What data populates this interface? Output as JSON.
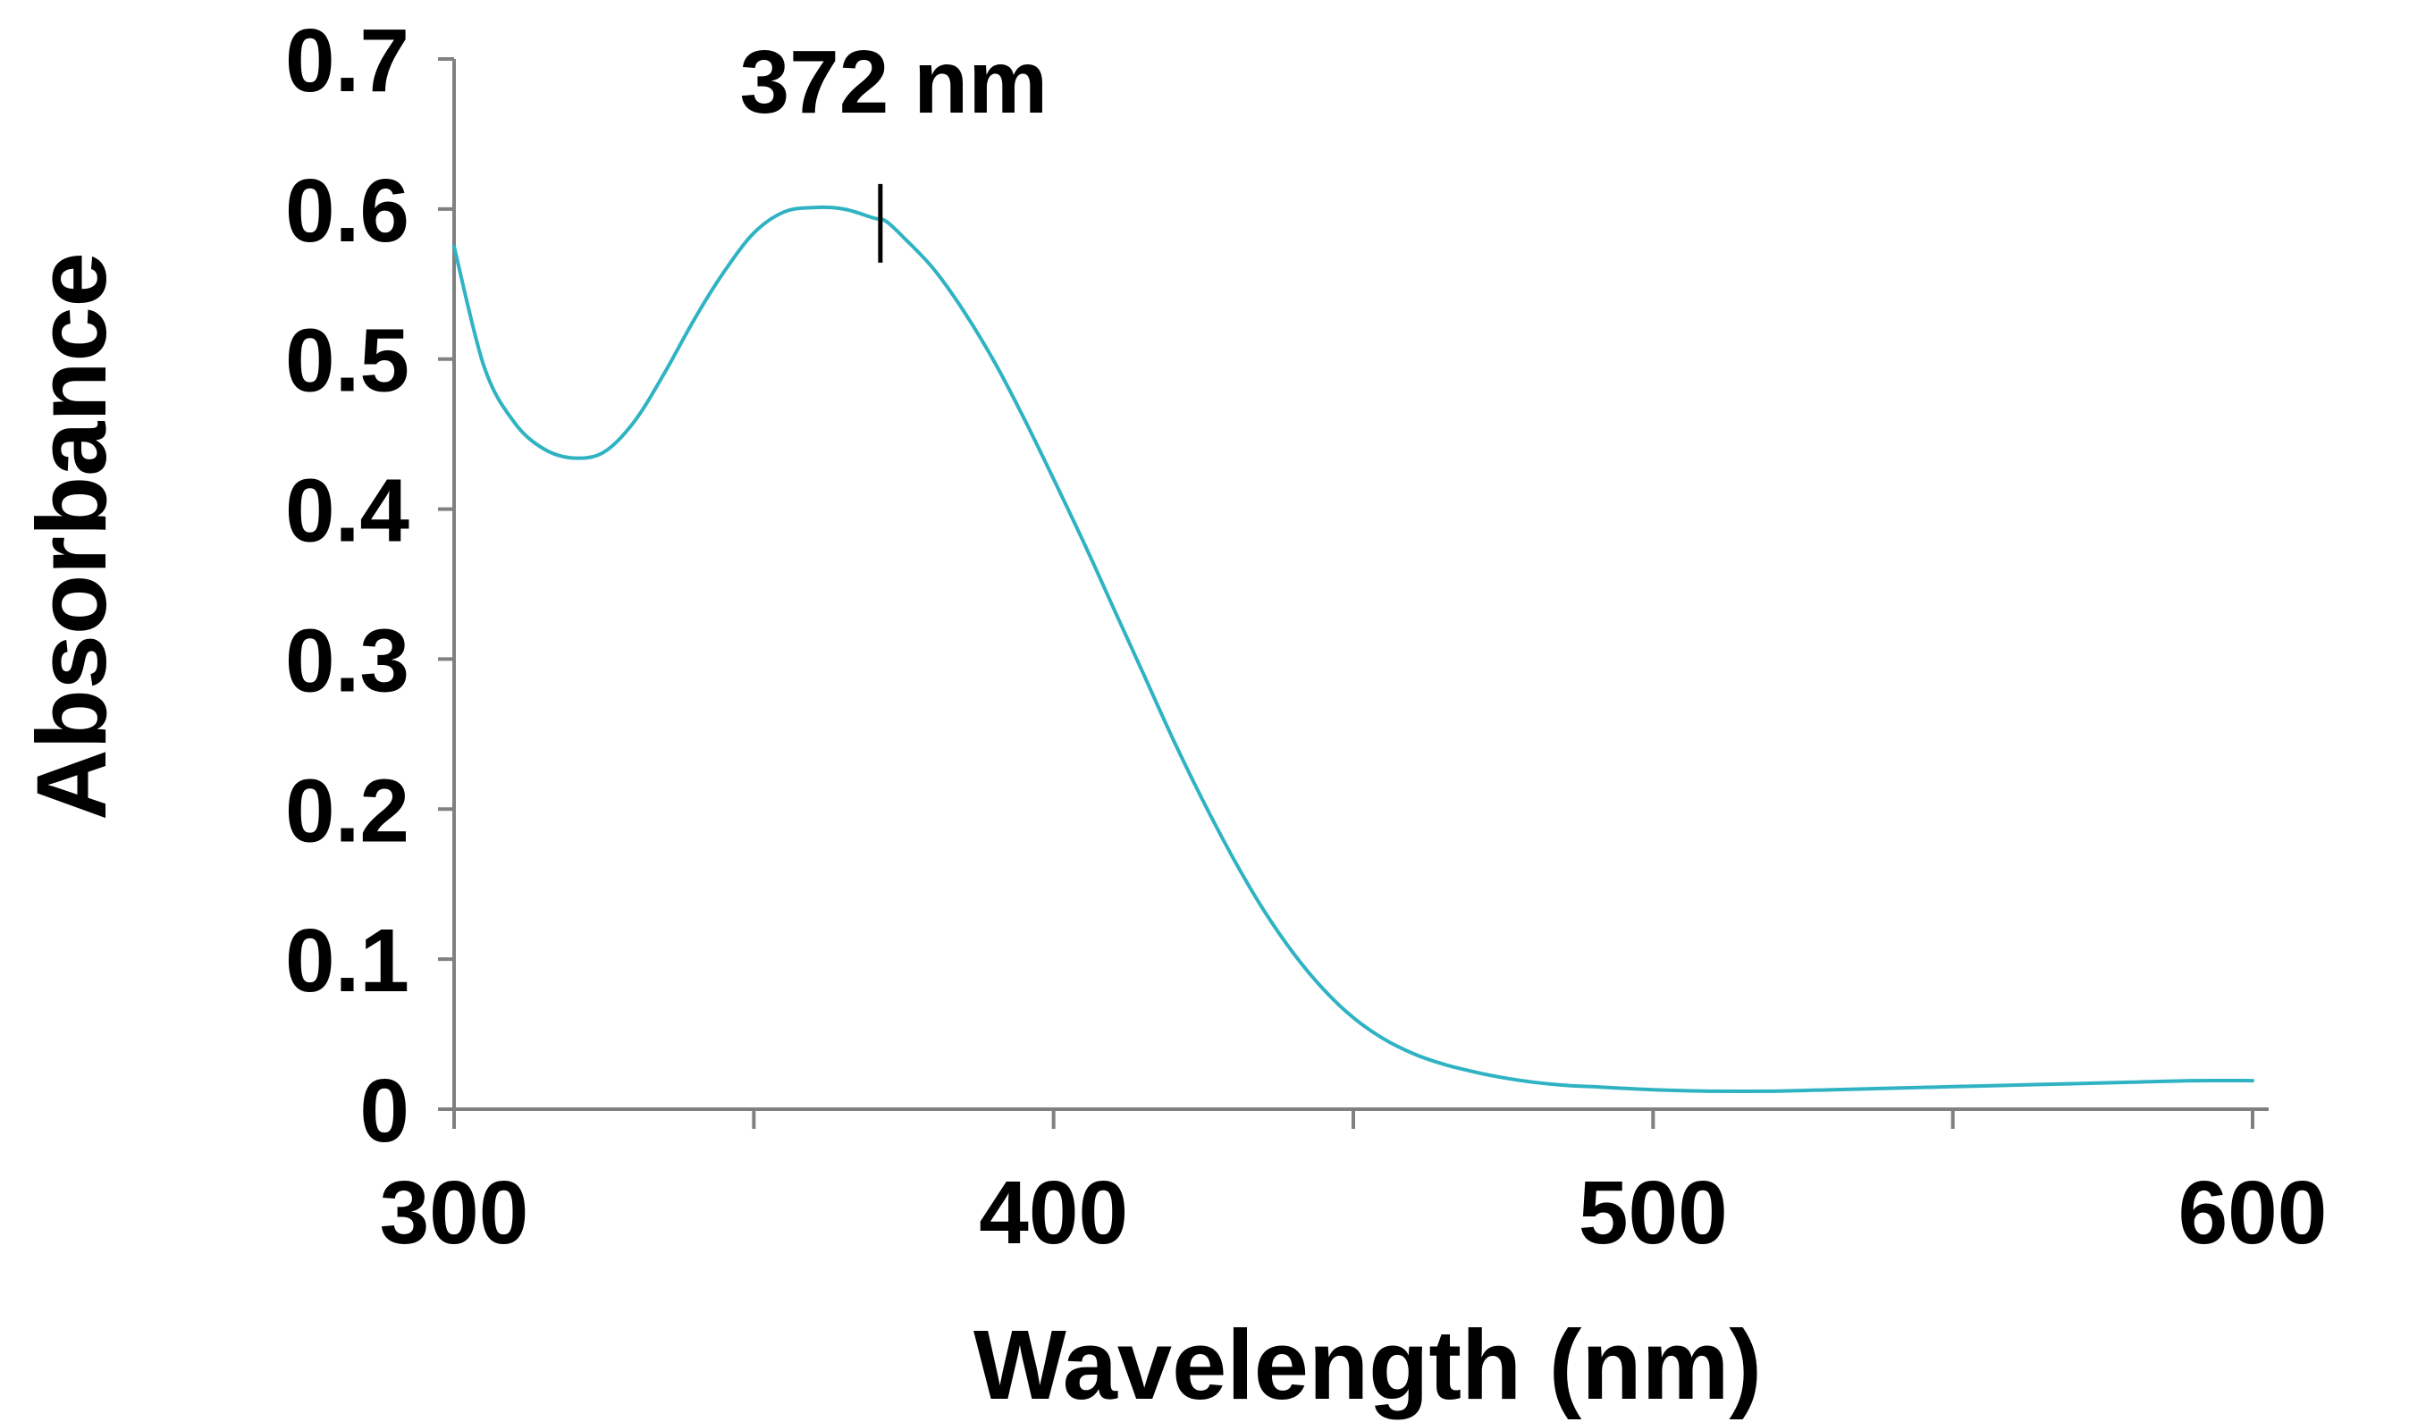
{
  "chart_data": {
    "type": "line",
    "title": "",
    "xlabel": "Wavelength (nm)",
    "ylabel": "Absorbance",
    "xlim": [
      300,
      600
    ],
    "ylim": [
      0,
      0.7
    ],
    "x_ticks": [
      300,
      350,
      400,
      450,
      500,
      550,
      600
    ],
    "x_tick_labels": [
      "300",
      "400",
      "500",
      "600"
    ],
    "x_tick_label_values": [
      300,
      400,
      500,
      600
    ],
    "y_ticks": [
      0,
      0.1,
      0.2,
      0.3,
      0.4,
      0.5,
      0.6,
      0.7
    ],
    "y_tick_labels": [
      "0",
      "0.1",
      "0.2",
      "0.3",
      "0.4",
      "0.5",
      "0.6",
      "0.7"
    ],
    "grid": false,
    "legend": "none",
    "series": [
      {
        "name": "Absorbance",
        "color": "#2fb3c3",
        "x": [
          300,
          305,
          310,
          315,
          320,
          325,
          330,
          335,
          340,
          345,
          350,
          355,
          360,
          365,
          370,
          372,
          375,
          380,
          385,
          390,
          395,
          400,
          405,
          410,
          415,
          420,
          425,
          430,
          435,
          440,
          445,
          450,
          455,
          460,
          465,
          470,
          475,
          480,
          485,
          490,
          500,
          510,
          520,
          530,
          540,
          550,
          560,
          570,
          580,
          590,
          600
        ],
        "y": [
          0.575,
          0.495,
          0.458,
          0.44,
          0.434,
          0.438,
          0.458,
          0.49,
          0.526,
          0.558,
          0.584,
          0.598,
          0.601,
          0.6,
          0.594,
          0.592,
          0.581,
          0.56,
          0.532,
          0.499,
          0.461,
          0.42,
          0.378,
          0.334,
          0.29,
          0.246,
          0.205,
          0.167,
          0.133,
          0.104,
          0.08,
          0.061,
          0.047,
          0.037,
          0.03,
          0.025,
          0.021,
          0.018,
          0.016,
          0.015,
          0.013,
          0.012,
          0.012,
          0.013,
          0.014,
          0.015,
          0.016,
          0.017,
          0.018,
          0.019,
          0.019
        ]
      }
    ],
    "annotations": [
      {
        "text": "372 nm",
        "x": 372,
        "y": 0.6
      }
    ]
  }
}
